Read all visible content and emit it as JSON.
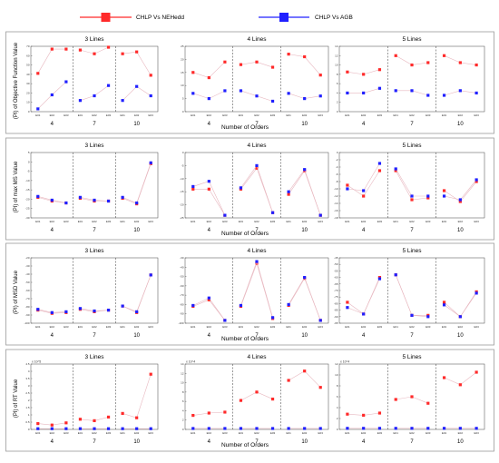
{
  "legend": [
    {
      "label": "CHLP Vs NEHedd",
      "color": "#ff2a2a"
    },
    {
      "label": "CHLP Vs AGB",
      "color": "#2020ff"
    }
  ],
  "colors": {
    "line": "#e8b8c0",
    "divider": "#555555",
    "row_border": "#9a9a9a"
  },
  "chart_data": [
    {
      "type": "scatter",
      "title": "",
      "ylabel": "(PI) of Objective Function Value",
      "xlabel": "Number of Orders",
      "groups": [
        "4",
        "7",
        "10"
      ],
      "subgroups": [
        "E01",
        "E02",
        "E03"
      ],
      "panels": [
        {
          "title": "3 Lines",
          "ylim": [
            0,
            70
          ],
          "yticks": [
            0,
            10,
            20,
            30,
            40,
            50,
            60,
            70
          ],
          "series": [
            {
              "name": "CHLP Vs NEHedd",
              "values": [
                41,
                67,
                67,
                66,
                62,
                69,
                62,
                64,
                39
              ]
            },
            {
              "name": "CHLP Vs AGB",
              "values": [
                3,
                18,
                32,
                12,
                17,
                28,
                12,
                27,
                17
              ]
            }
          ]
        },
        {
          "title": "4 Lines",
          "ylim": [
            0,
            25
          ],
          "yticks": [
            0,
            5,
            10,
            15,
            20,
            25
          ],
          "series": [
            {
              "name": "CHLP Vs NEHedd",
              "values": [
                15,
                13,
                19,
                18,
                19,
                17,
                22,
                21,
                14
              ]
            },
            {
              "name": "CHLP Vs AGB",
              "values": [
                7,
                5,
                8,
                8,
                6,
                4,
                7,
                5,
                6
              ]
            }
          ]
        },
        {
          "title": "5 Lines",
          "ylim": [
            0,
            14
          ],
          "yticks": [
            0,
            2,
            4,
            6,
            8,
            10,
            12,
            14
          ],
          "series": [
            {
              "name": "CHLP Vs NEHedd",
              "values": [
                8.5,
                8,
                9,
                12,
                10,
                10.5,
                12,
                10.5,
                10
              ]
            },
            {
              "name": "CHLP Vs AGB",
              "values": [
                4,
                4,
                5,
                4.5,
                4.5,
                3.5,
                3.5,
                4.5,
                4
              ]
            }
          ]
        }
      ]
    },
    {
      "type": "scatter",
      "title": "",
      "ylabel": "(PI) of max MS Value",
      "xlabel": "Number of Orders",
      "groups": [
        "4",
        "7",
        "10"
      ],
      "subgroups": [
        "E01",
        "E02",
        "E03"
      ],
      "panels": [
        {
          "title": "3 Lines",
          "ylim": [
            -30,
            5
          ],
          "yticks": [
            -30,
            -25,
            -20,
            -15,
            -10,
            -5,
            0,
            5
          ],
          "series": [
            {
              "name": "CHLP Vs NEHedd",
              "values": [
                -19,
                -21,
                -22,
                -19.5,
                -21,
                -21,
                -19.5,
                -22.5,
                -1
              ]
            },
            {
              "name": "CHLP Vs AGB",
              "values": [
                -18.5,
                -20.5,
                -22,
                -19,
                -20.5,
                -21,
                -19,
                -22,
                -0.5
              ]
            }
          ]
        },
        {
          "title": "4 Lines",
          "ylim": [
            -25,
            0
          ],
          "yticks": [
            -25,
            -20,
            -15,
            -10,
            -5,
            0
          ],
          "series": [
            {
              "name": "CHLP Vs NEHedd",
              "values": [
                -14,
                -14,
                -24,
                -14,
                -6,
                -23,
                -16,
                -7,
                -24
              ]
            },
            {
              "name": "CHLP Vs AGB",
              "values": [
                -13,
                -11,
                -24,
                -13.5,
                -5,
                -23,
                -15,
                -6.5,
                -24
              ]
            }
          ]
        },
        {
          "title": "5 Lines",
          "ylim": [
            -18,
            0
          ],
          "yticks": [
            -18,
            -16,
            -14,
            -12,
            -10,
            -8,
            -6,
            -4,
            -2,
            0
          ],
          "series": [
            {
              "name": "CHLP Vs NEHedd",
              "values": [
                -9,
                -12,
                -5,
                -5,
                -13,
                -12.5,
                -10.5,
                -13.5,
                -8
              ]
            },
            {
              "name": "CHLP Vs AGB",
              "values": [
                -10,
                -10.5,
                -3,
                -4.5,
                -12,
                -12,
                -12,
                -13,
                -7.5
              ]
            }
          ]
        }
      ]
    },
    {
      "type": "scatter",
      "title": "",
      "ylabel": "(PI) of MSD Value",
      "xlabel": "Number of Orders",
      "groups": [
        "4",
        "7",
        "10"
      ],
      "subgroups": [
        "E01",
        "E02",
        "E03"
      ],
      "panels": [
        {
          "title": "3 Lines",
          "ylim": [
            -100,
            -20
          ],
          "yticks": [
            -100,
            -90,
            -80,
            -70,
            -60,
            -50,
            -40,
            -30,
            -20
          ],
          "series": [
            {
              "name": "CHLP Vs NEHedd",
              "values": [
                -84,
                -88,
                -87,
                -83,
                -86,
                -84,
                -79,
                -87,
                -41
              ]
            },
            {
              "name": "CHLP Vs AGB",
              "values": [
                -83,
                -87,
                -86,
                -82,
                -85,
                -84,
                -79,
                -86,
                -41
              ]
            }
          ]
        },
        {
          "title": "4 Lines",
          "ylim": [
            -100,
            -30
          ],
          "yticks": [
            -100,
            -90,
            -80,
            -70,
            -60,
            -50,
            -40,
            -30
          ],
          "series": [
            {
              "name": "CHLP Vs NEHedd",
              "values": [
                -82,
                -75,
                -97,
                -82,
                -36,
                -95,
                -81,
                -52,
                -97
              ]
            },
            {
              "name": "CHLP Vs AGB",
              "values": [
                -81,
                -73,
                -97,
                -81,
                -34,
                -94,
                -80,
                -51,
                -97
              ]
            }
          ]
        },
        {
          "title": "5 Lines",
          "ylim": [
            -95,
            -45
          ],
          "yticks": [
            -95,
            -90,
            -85,
            -80,
            -75,
            -70,
            -65,
            -60,
            -55,
            -50,
            -45
          ],
          "series": [
            {
              "name": "CHLP Vs NEHedd",
              "values": [
                -79,
                -88,
                -60,
                -58,
                -89,
                -89,
                -79,
                -90,
                -71
              ]
            },
            {
              "name": "CHLP Vs AGB",
              "values": [
                -83,
                -88,
                -61,
                -58,
                -89,
                -90,
                -81,
                -90,
                -72
              ]
            }
          ]
        }
      ]
    },
    {
      "type": "scatter",
      "title": "",
      "ylabel": "(PI) of RT Value",
      "xlabel": "Number of Orders",
      "groups": [
        "4",
        "7",
        "10"
      ],
      "subgroups": [
        "E01",
        "E02",
        "E03"
      ],
      "panels": [
        {
          "title": "3 Lines",
          "ylim": [
            0,
            4.5
          ],
          "yticks": [
            0,
            0.5,
            1,
            1.5,
            2,
            2.5,
            3,
            3.5,
            4,
            4.5
          ],
          "exponent": "x 10^5",
          "series": [
            {
              "name": "CHLP Vs NEHedd",
              "values": [
                0.4,
                0.3,
                0.45,
                0.7,
                0.6,
                0.85,
                1.1,
                0.8,
                3.8
              ]
            },
            {
              "name": "CHLP Vs AGB",
              "values": [
                0.05,
                0.05,
                0.05,
                0.05,
                0.05,
                0.05,
                0.05,
                0.05,
                0.05
              ]
            }
          ]
        },
        {
          "title": "4 Lines",
          "ylim": [
            0,
            14
          ],
          "yticks": [
            0,
            2,
            4,
            6,
            8,
            10,
            12,
            14
          ],
          "exponent": "x 10^4",
          "series": [
            {
              "name": "CHLP Vs NEHedd",
              "values": [
                3,
                3.5,
                3.7,
                6.2,
                8,
                6.5,
                10.5,
                12.5,
                9
              ]
            },
            {
              "name": "CHLP Vs AGB",
              "values": [
                0.2,
                0.2,
                0.2,
                0.2,
                0.2,
                0.2,
                0.2,
                0.2,
                0.2
              ]
            }
          ]
        },
        {
          "title": "5 Lines",
          "ylim": [
            0,
            12
          ],
          "yticks": [
            0,
            2,
            4,
            6,
            8,
            10,
            12
          ],
          "exponent": "x 10^4",
          "series": [
            {
              "name": "CHLP Vs NEHedd",
              "values": [
                2.8,
                2.6,
                3,
                5.5,
                6,
                4.8,
                9.5,
                8.2,
                10.5
              ]
            },
            {
              "name": "CHLP Vs AGB",
              "values": [
                0.2,
                0.2,
                0.2,
                0.2,
                0.2,
                0.2,
                0.2,
                0.2,
                0.2
              ]
            }
          ]
        }
      ]
    }
  ]
}
